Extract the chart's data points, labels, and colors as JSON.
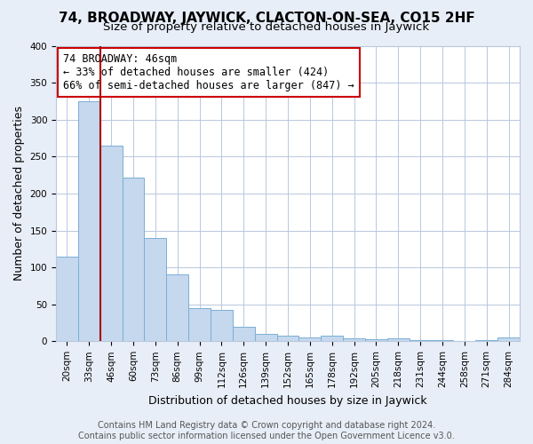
{
  "title": "74, BROADWAY, JAYWICK, CLACTON-ON-SEA, CO15 2HF",
  "subtitle": "Size of property relative to detached houses in Jaywick",
  "xlabel": "Distribution of detached houses by size in Jaywick",
  "ylabel": "Number of detached properties",
  "categories": [
    "20sqm",
    "33sqm",
    "46sqm",
    "60sqm",
    "73sqm",
    "86sqm",
    "99sqm",
    "112sqm",
    "126sqm",
    "139sqm",
    "152sqm",
    "165sqm",
    "178sqm",
    "192sqm",
    "205sqm",
    "218sqm",
    "231sqm",
    "244sqm",
    "258sqm",
    "271sqm",
    "284sqm"
  ],
  "values": [
    115,
    325,
    265,
    222,
    140,
    90,
    45,
    43,
    20,
    10,
    7,
    5,
    8,
    4,
    3,
    4,
    1,
    1,
    0,
    1,
    5
  ],
  "bar_color": "#c5d8ee",
  "bar_edge_color": "#7aafd4",
  "vline_color": "#aa0000",
  "annotation_text": "74 BROADWAY: 46sqm\n← 33% of detached houses are smaller (424)\n66% of semi-detached houses are larger (847) →",
  "annotation_box_color": "#ffffff",
  "annotation_box_edge": "#cc0000",
  "ylim": [
    0,
    400
  ],
  "yticks": [
    0,
    50,
    100,
    150,
    200,
    250,
    300,
    350,
    400
  ],
  "footer_text": "Contains HM Land Registry data © Crown copyright and database right 2024.\nContains public sector information licensed under the Open Government Licence v3.0.",
  "bg_color": "#e8eef8",
  "plot_bg_color": "#ffffff",
  "grid_color": "#b8c8dc",
  "title_fontsize": 11,
  "subtitle_fontsize": 9.5,
  "axis_label_fontsize": 9,
  "tick_fontsize": 7.5,
  "annotation_fontsize": 8.5,
  "footer_fontsize": 7
}
